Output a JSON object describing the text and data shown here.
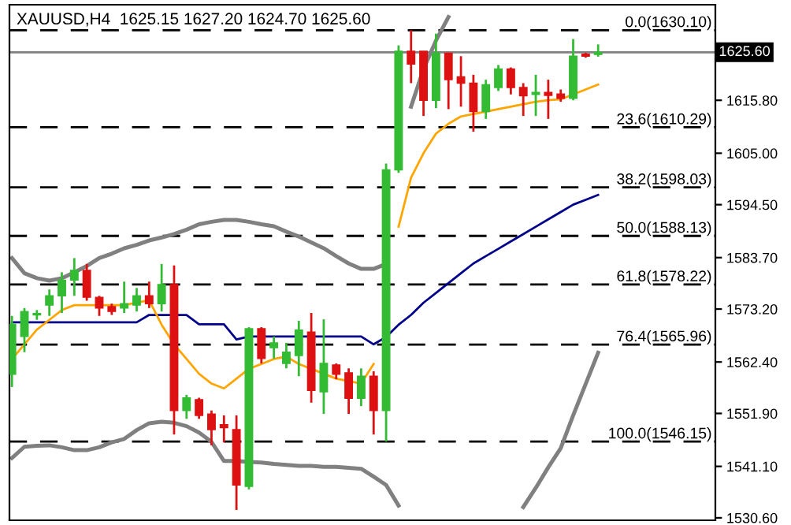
{
  "chart_data": {
    "type": "candlestick",
    "title": "XAUUSD,H4  1625.15 1627.20 1624.70 1625.60",
    "categories": [
      null,
      null,
      null,
      null,
      null,
      null,
      null,
      null,
      null,
      null,
      null,
      null,
      null,
      null,
      null,
      null,
      null,
      null,
      null,
      null,
      null,
      null,
      null,
      null,
      null,
      null,
      null,
      null,
      null,
      null,
      null,
      null,
      null,
      null,
      null,
      null,
      null,
      null,
      null,
      null,
      null,
      null,
      null,
      null,
      null,
      null,
      null,
      null
    ],
    "ohlc": [
      [
        1559.9,
        1571.8,
        1557.3,
        1570.1
      ],
      [
        1567.6,
        1573.4,
        1564.4,
        1572.7
      ],
      [
        1572.0,
        1573.0,
        1571.0,
        1572.3
      ],
      [
        1574.0,
        1577.2,
        1571.8,
        1575.9
      ],
      [
        1575.9,
        1580.7,
        1572.4,
        1579.1
      ],
      [
        1579.1,
        1583.6,
        1575.9,
        1581.1
      ],
      [
        1581.1,
        1582.4,
        1574.9,
        1575.6
      ],
      [
        1575.6,
        1575.9,
        1571.8,
        1573.4
      ],
      [
        1573.7,
        1574.3,
        1572.0,
        1572.7
      ],
      [
        1573.4,
        1578.8,
        1572.4,
        1574.3
      ],
      [
        1574.0,
        1577.5,
        1572.7,
        1575.9
      ],
      [
        1575.9,
        1578.8,
        1573.4,
        1574.3
      ],
      [
        1574.3,
        1582.4,
        1572.7,
        1578.2
      ],
      [
        1578.2,
        1582.1,
        1547.6,
        1552.5
      ],
      [
        1552.5,
        1555.7,
        1550.8,
        1555.1
      ],
      [
        1554.7,
        1555.1,
        1550.8,
        1551.5
      ],
      [
        1551.8,
        1552.5,
        1545.4,
        1548.6
      ],
      [
        1549.6,
        1551.5,
        1546.0,
        1549.0
      ],
      [
        1548.6,
        1551.5,
        1532.2,
        1537.3
      ],
      [
        1537.0,
        1569.5,
        1536.4,
        1569.2
      ],
      [
        1569.2,
        1569.5,
        1562.1,
        1563.1
      ],
      [
        1565.3,
        1567.6,
        1563.1,
        1566.3
      ],
      [
        1562.1,
        1566.3,
        1561.1,
        1564.4
      ],
      [
        1563.7,
        1570.8,
        1559.5,
        1568.9
      ],
      [
        1568.5,
        1572.4,
        1554.1,
        1556.6
      ],
      [
        1556.3,
        1571.1,
        1551.8,
        1562.1
      ],
      [
        1561.8,
        1562.1,
        1558.9,
        1559.9
      ],
      [
        1560.2,
        1561.1,
        1551.8,
        1555.0
      ],
      [
        1555.0,
        1561.1,
        1553.4,
        1559.5
      ],
      [
        1559.5,
        1560.5,
        1547.6,
        1552.5
      ],
      [
        1552.5,
        1602.9,
        1546.15,
        1601.6
      ],
      [
        1601.6,
        1627.0,
        1601.0,
        1625.8
      ],
      [
        1625.8,
        1630.1,
        1619.3,
        1623.2
      ],
      [
        1625.8,
        1625.8,
        1612.6,
        1615.8
      ],
      [
        1615.8,
        1629.4,
        1614.2,
        1625.4
      ],
      [
        1625.4,
        1625.5,
        1614.0,
        1620.0
      ],
      [
        1620.6,
        1624.8,
        1614.5,
        1619.3
      ],
      [
        1619.3,
        1621.0,
        1609.4,
        1613.5
      ],
      [
        1613.5,
        1620.0,
        1612.0,
        1619.0
      ],
      [
        1618.4,
        1623.0,
        1617.7,
        1622.2
      ],
      [
        1622.2,
        1622.5,
        1617.0,
        1618.4
      ],
      [
        1618.4,
        1619.3,
        1612.6,
        1616.7
      ],
      [
        1617.0,
        1621.0,
        1612.6,
        1617.4
      ],
      [
        1617.4,
        1620.0,
        1612.0,
        1616.8
      ],
      [
        1617.1,
        1618.0,
        1615.5,
        1616.2
      ],
      [
        1616.2,
        1628.3,
        1615.8,
        1624.8
      ],
      [
        1625.2,
        1625.5,
        1624.5,
        1624.8
      ],
      [
        1625.15,
        1627.2,
        1624.7,
        1625.6
      ]
    ],
    "series": [
      {
        "type": "line",
        "color": "#808080",
        "values": [
          1583.6,
          1580.5,
          1579.5,
          1579.0,
          1579.5,
          1580.7,
          1582.0,
          1583.6,
          1584.5,
          1585.6,
          1586.3,
          1587.2,
          1587.8,
          1588.5,
          1589.4,
          1590.5,
          1591.0,
          1591.4,
          1591.4,
          1591.0,
          1590.5,
          1590.1,
          1589.0,
          1588.0,
          1586.8,
          1585.6,
          1584.0,
          1582.5,
          1581.4,
          1581.4,
          1582.4,
          null,
          1614.5,
          1622.2,
          1628.0,
          1632.8,
          null,
          null,
          null,
          null,
          null,
          null,
          null,
          null,
          null,
          null,
          null,
          null
        ]
      },
      {
        "type": "line",
        "color": "#808080",
        "values": [
          1542.8,
          1545.1,
          1545.3,
          1545.4,
          1545.0,
          1544.4,
          1544.4,
          1545.0,
          1546.0,
          1546.7,
          1548.5,
          1549.9,
          1550.2,
          1550.0,
          1549.3,
          1548.0,
          1546.1,
          1542.2,
          1542.2,
          1542.0,
          1541.9,
          1541.6,
          1541.4,
          1541.2,
          1541.2,
          1541.0,
          1541.0,
          1540.8,
          1540.6,
          1539.0,
          1537.3,
          1533.1,
          null,
          null,
          null,
          null,
          null,
          null,
          null,
          null,
          null,
          1532.8,
          1536.7,
          1540.9,
          1544.8,
          1551.5,
          1557.9,
          1564.3
        ]
      },
      {
        "type": "line",
        "color": "#00008b",
        "values": [
          1570.5,
          1570.5,
          1570.5,
          1570.5,
          1570.5,
          1570.5,
          1570.5,
          1570.5,
          1570.5,
          1570.5,
          1570.5,
          1572.0,
          1572.0,
          1572.0,
          1572.0,
          1570.1,
          1570.1,
          1570.1,
          1567.0,
          1567.6,
          1567.6,
          1567.6,
          1567.6,
          1567.6,
          1567.6,
          1567.6,
          1567.6,
          1567.6,
          1567.6,
          1566.0,
          1567.5,
          1570.0,
          1572.0,
          1574.5,
          1576.5,
          1578.5,
          1580.5,
          1582.5,
          1584.0,
          1585.5,
          1587.0,
          1588.5,
          1590.0,
          1591.5,
          1593.0,
          1594.5,
          1595.5,
          1596.5
        ]
      },
      {
        "type": "line",
        "color": "#ffa500",
        "values": [
          1563,
          1566,
          1569,
          1571,
          1573,
          1574,
          1574,
          1574,
          1574,
          1574,
          1574.5,
          1575,
          1570,
          1566,
          1563,
          1560,
          1558,
          1557,
          1559,
          1561,
          1562,
          1563,
          1563.5,
          1562,
          1561,
          1560,
          1559,
          1558.5,
          1558,
          1562,
          null,
          1590,
          1600,
          1605,
          1609,
          1611,
          1612.5,
          1613,
          1613.5,
          1614,
          1614.5,
          1615,
          1615.5,
          1615.8,
          1616,
          1617,
          1618,
          1619
        ]
      }
    ],
    "colors": [
      "#33bb33",
      "#33bb33",
      "#33bb33",
      "#33bb33",
      "#33bb33",
      "#33bb33",
      "#dd1111",
      "#dd1111",
      "#dd1111",
      "#33bb33",
      "#33bb33",
      "#dd1111",
      "#33bb33",
      "#dd1111",
      "#33bb33",
      "#dd1111",
      "#dd1111",
      "#dd1111",
      "#dd1111",
      "#33bb33",
      "#dd1111",
      "#33bb33",
      "#33bb33",
      "#33bb33",
      "#dd1111",
      "#33bb33",
      "#dd1111",
      "#dd1111",
      "#33bb33",
      "#dd1111",
      "#33bb33",
      "#33bb33",
      "#dd1111",
      "#dd1111",
      "#33bb33",
      "#dd1111",
      "#dd1111",
      "#dd1111",
      "#33bb33",
      "#33bb33",
      "#dd1111",
      "#dd1111",
      "#33bb33",
      "#dd1111",
      "#dd1111",
      "#33bb33",
      "#dd1111",
      "#33bb33"
    ],
    "ylim": [
      1530.1,
      1635.3
    ],
    "yticks": [
      {
        "value": 1615.8,
        "label": "1615.80"
      },
      {
        "value": 1605.0,
        "label": "1605.00"
      },
      {
        "value": 1594.5,
        "label": "1594.50"
      },
      {
        "value": 1583.7,
        "label": "1583.70"
      },
      {
        "value": 1573.2,
        "label": "1573.20"
      },
      {
        "value": 1562.4,
        "label": "1562.40"
      },
      {
        "value": 1551.9,
        "label": "1551.90"
      },
      {
        "value": 1541.1,
        "label": "1541.10"
      },
      {
        "value": 1530.6,
        "label": "1530.60"
      }
    ],
    "ref_lines": [
      {
        "axis": "y",
        "value": 1625.6,
        "label": "1625.60",
        "color": "#808080",
        "line_style": "solid"
      },
      {
        "axis": "y",
        "value": 1630.1,
        "label": "0.0(1630.10)",
        "color": "#000000",
        "line_style": "dashed"
      },
      {
        "axis": "y",
        "value": 1610.29,
        "label": "23.6(1610.29)",
        "color": "#000000",
        "line_style": "dashed"
      },
      {
        "axis": "y",
        "value": 1598.03,
        "label": "38.2(1598.03)",
        "color": "#000000",
        "line_style": "dashed"
      },
      {
        "axis": "y",
        "value": 1588.13,
        "label": "50.0(1588.13)",
        "color": "#000000",
        "line_style": "dashed"
      },
      {
        "axis": "y",
        "value": 1578.22,
        "label": "61.8(1578.22)",
        "color": "#000000",
        "line_style": "dashed"
      },
      {
        "axis": "y",
        "value": 1565.96,
        "label": "76.4(1565.96)",
        "color": "#000000",
        "line_style": "dashed"
      },
      {
        "axis": "y",
        "value": 1546.15,
        "label": "100.0(1546.15)",
        "color": "#000000",
        "line_style": "dashed"
      }
    ],
    "tick_labels": "y",
    "grid": false,
    "legend": false
  }
}
